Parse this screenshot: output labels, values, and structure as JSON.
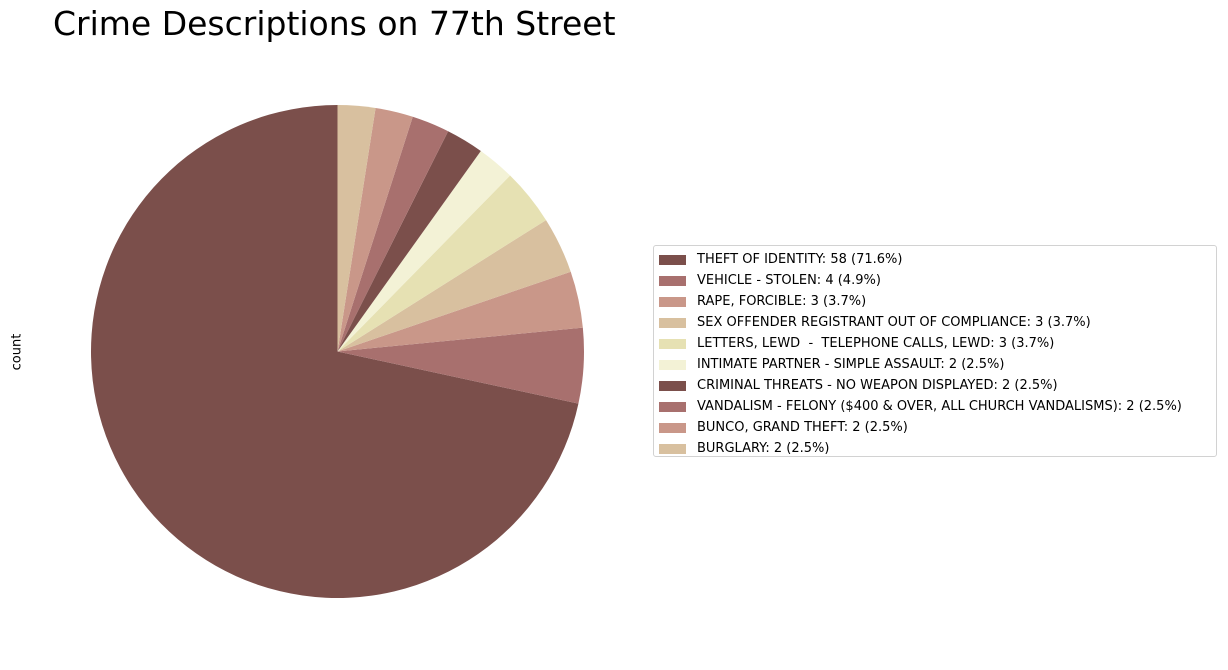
{
  "chart_data": {
    "type": "pie",
    "title": "Crime Descriptions on 77th Street",
    "ylabel": "count",
    "start_angle_deg": 90,
    "direction": "counterclockwise",
    "legend_placement": "center-right",
    "slices": [
      {
        "label": "THEFT OF IDENTITY",
        "value": 58,
        "pct": 71.6,
        "color": "#7b4f4b",
        "legend": "THEFT OF IDENTITY: 58 (71.6%)"
      },
      {
        "label": "VEHICLE - STOLEN",
        "value": 4,
        "pct": 4.9,
        "color": "#a8706e",
        "legend": "VEHICLE - STOLEN: 4 (4.9%)"
      },
      {
        "label": "RAPE, FORCIBLE",
        "value": 3,
        "pct": 3.7,
        "color": "#c99789",
        "legend": "RAPE, FORCIBLE: 3 (3.7%)"
      },
      {
        "label": "SEX OFFENDER REGISTRANT OUT OF COMPLIANCE",
        "value": 3,
        "pct": 3.7,
        "color": "#d8c09f",
        "legend": "SEX OFFENDER REGISTRANT OUT OF COMPLIANCE: 3 (3.7%)"
      },
      {
        "label": "LETTERS, LEWD  -  TELEPHONE CALLS, LEWD",
        "value": 3,
        "pct": 3.7,
        "color": "#e6e1b3",
        "legend": "LETTERS, LEWD  -  TELEPHONE CALLS, LEWD: 3 (3.7%)"
      },
      {
        "label": "INTIMATE PARTNER - SIMPLE ASSAULT",
        "value": 2,
        "pct": 2.5,
        "color": "#f3f2d6",
        "legend": "INTIMATE PARTNER - SIMPLE ASSAULT: 2 (2.5%)"
      },
      {
        "label": "CRIMINAL THREATS - NO WEAPON DISPLAYED",
        "value": 2,
        "pct": 2.5,
        "color": "#7b4f4b",
        "legend": "CRIMINAL THREATS - NO WEAPON DISPLAYED: 2 (2.5%)"
      },
      {
        "label": "VANDALISM - FELONY ($400 & OVER, ALL CHURCH VANDALISMS)",
        "value": 2,
        "pct": 2.5,
        "color": "#a8706e",
        "legend": "VANDALISM - FELONY ($400 & OVER, ALL CHURCH VANDALISMS): 2 (2.5%)"
      },
      {
        "label": "BUNCO, GRAND THEFT",
        "value": 2,
        "pct": 2.5,
        "color": "#c99789",
        "legend": "BUNCO, GRAND THEFT: 2 (2.5%)"
      },
      {
        "label": "BURGLARY",
        "value": 2,
        "pct": 2.5,
        "color": "#d8c09f",
        "legend": "BURGLARY: 2 (2.5%)"
      }
    ]
  }
}
